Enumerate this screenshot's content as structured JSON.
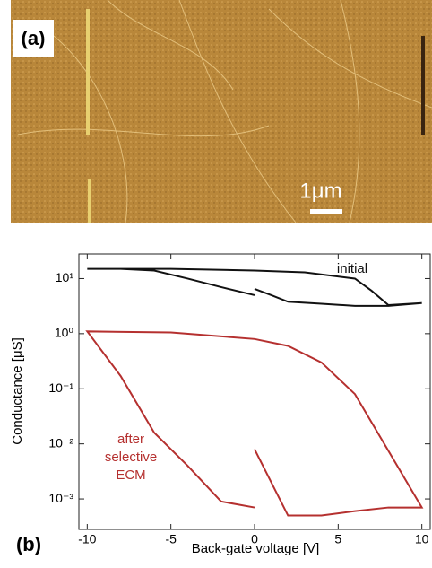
{
  "panel_a": {
    "label": "(a)",
    "scale_bar": "1μm"
  },
  "chart_data": {
    "type": "line",
    "panel_label": "(b)",
    "x_label": "Back-gate voltage [V]",
    "y_label": "Conductance [μS]",
    "xlim": [
      -10.5,
      10.5
    ],
    "xticks": [
      -10,
      -5,
      0,
      5,
      10
    ],
    "ylim": [
      0.00028,
      28
    ],
    "log_y": true,
    "yticks": [
      {
        "value": 10,
        "label": "10¹"
      },
      {
        "value": 1,
        "label": "10⁰"
      },
      {
        "value": 0.1,
        "label": "10⁻¹"
      },
      {
        "value": 0.01,
        "label": "10⁻²"
      },
      {
        "value": 0.001,
        "label": "10⁻³"
      }
    ],
    "series": [
      {
        "label_lines": [
          "initial"
        ],
        "color": "#111111",
        "x": [
          0,
          1,
          2,
          4,
          6,
          8,
          10,
          8,
          7,
          6,
          3,
          0,
          -5,
          -10,
          -8,
          -6,
          -4,
          -2,
          0
        ],
        "values": [
          6.5,
          5,
          3.8,
          3.5,
          3.2,
          3.2,
          3.6,
          3.3,
          6,
          10,
          13,
          14,
          15,
          15,
          15,
          14,
          10,
          7,
          5
        ]
      },
      {
        "label_lines": [
          "after",
          "selective",
          "ECM"
        ],
        "color": "#b5302f",
        "x": [
          0,
          2,
          4,
          6,
          8,
          10,
          6,
          4,
          2,
          0,
          -5,
          -10,
          -8,
          -6,
          -4,
          -2,
          0
        ],
        "values": [
          0.008,
          0.0005,
          0.0005,
          0.0006,
          0.0007,
          0.0007,
          0.08,
          0.3,
          0.6,
          0.8,
          1.05,
          1.1,
          0.17,
          0.016,
          0.004,
          0.0009,
          0.0007
        ]
      }
    ]
  }
}
